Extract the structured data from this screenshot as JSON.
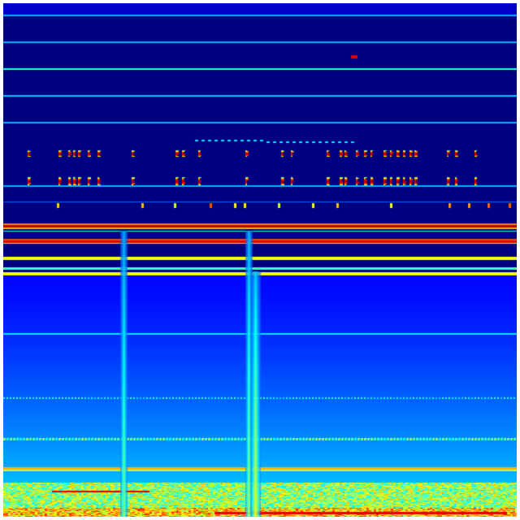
{
  "image": {
    "kind": "spectrogram",
    "colormap": "jet",
    "colors": {
      "background": "#000080",
      "low": "#0000c8",
      "blue": "#0040ff",
      "cyan": "#00d8ff",
      "green": "#80ff80",
      "yellow": "#ffff00",
      "orange": "#ff9000",
      "red": "#e00000"
    }
  }
}
